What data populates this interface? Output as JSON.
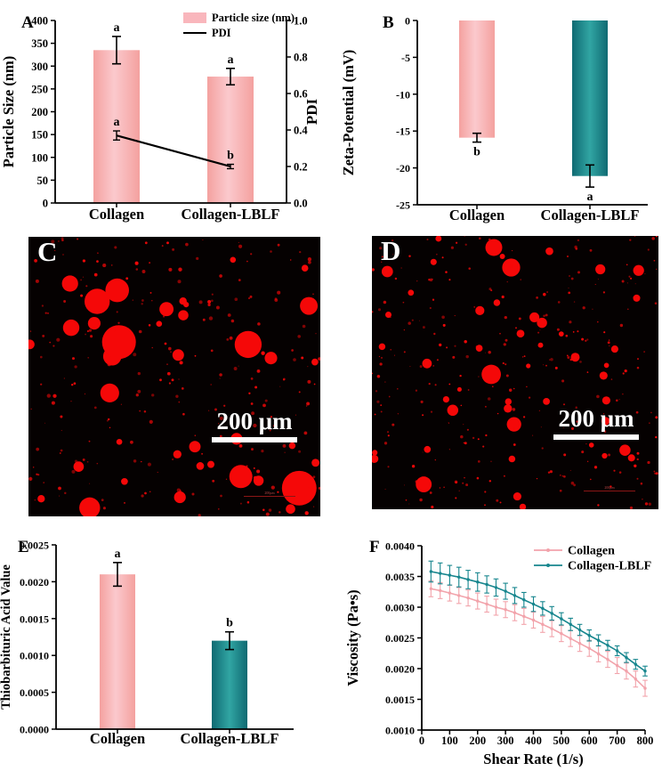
{
  "colors": {
    "axis": "#000000",
    "pink_edge": "#f4a19f",
    "pink_mid": "#fbc9cd",
    "pink_flat": "#f9b6bc",
    "teal_edge": "#0f6a72",
    "teal_mid": "#31a5a3",
    "pink_line": "#f2a3ab",
    "teal_line": "#17868e",
    "micro_red": "#f50808",
    "micro_bg": "#050101",
    "scalebar_white": "#ffffff"
  },
  "microscopy": {
    "c": {
      "label": "C",
      "scale_text": "200 μm",
      "embedded_scale_text": "200μm",
      "seed": 20,
      "tiers": [
        {
          "count": 12,
          "rmin": 8,
          "rmax": 20
        },
        {
          "count": 26,
          "rmin": 3,
          "rmax": 8
        },
        {
          "count": 260,
          "rmin": 0.5,
          "rmax": 2.2
        }
      ]
    },
    "d": {
      "label": "D",
      "scale_text": "200 μm",
      "embedded_scale_text": "200μm",
      "seed": 77,
      "tiers": [
        {
          "count": 7,
          "rmin": 6,
          "rmax": 11
        },
        {
          "count": 42,
          "rmin": 2.5,
          "rmax": 6.5
        },
        {
          "count": 300,
          "rmin": 0.4,
          "rmax": 1.8
        }
      ]
    }
  },
  "chart_data": [
    {
      "id": "A",
      "panel_letter": "A",
      "type": "bar",
      "subtype": "dual-axis-bar-line",
      "categories": [
        "Collagen",
        "Collagen-LBLF"
      ],
      "bar_series": {
        "name": "Particle size (nm)",
        "values": [
          335,
          277
        ],
        "errors": [
          30,
          18
        ],
        "letters": [
          "a",
          "a"
        ]
      },
      "line_series": {
        "name": "PDI",
        "values": [
          0.37,
          0.2
        ],
        "errors": [
          0.025,
          0.012
        ],
        "letters": [
          "a",
          "b"
        ]
      },
      "ylabel_left": "Particle Size (nm)",
      "ylabel_right": "PDI",
      "ylim_left": [
        0,
        400
      ],
      "ystep_left": 50,
      "ylim_right": [
        0,
        1
      ],
      "ystep_right": 0.2,
      "legend": [
        "Particle size (nm)",
        "PDI"
      ],
      "legend_position": "top-right-inside",
      "grid": false
    },
    {
      "id": "B",
      "panel_letter": "B",
      "type": "bar",
      "categories": [
        "Collagen",
        "Collagen-LBLF"
      ],
      "values": [
        -15.9,
        -21.1
      ],
      "errors": [
        0.6,
        1.5
      ],
      "letters": [
        "b",
        "a"
      ],
      "bar_colors": [
        "pink",
        "teal"
      ],
      "ylabel": "Zeta-Potential (mV)",
      "ylim": [
        -25,
        0
      ],
      "ystep": 5,
      "decimals": 0,
      "grid": false
    },
    {
      "id": "E",
      "panel_letter": "E",
      "type": "bar",
      "categories": [
        "Collagen",
        "Collagen-LBLF"
      ],
      "values": [
        0.0021,
        0.0012
      ],
      "errors": [
        0.00016,
        0.00012
      ],
      "letters": [
        "a",
        "b"
      ],
      "bar_colors": [
        "pink",
        "teal"
      ],
      "ylabel": "Thiobarbituric Acid Value",
      "ylim": [
        0,
        0.0025
      ],
      "ystep": 0.0005,
      "decimals": 4,
      "grid": false
    },
    {
      "id": "F",
      "panel_letter": "F",
      "type": "line",
      "xlabel": "Shear Rate (1/s)",
      "ylabel": "Viscosity (Pa•s)",
      "xlim": [
        0,
        800
      ],
      "xticks": [
        0,
        100,
        200,
        300,
        400,
        500,
        600,
        700,
        800
      ],
      "ylim": [
        0.001,
        0.004
      ],
      "ystep": 0.0005,
      "decimals": 4,
      "legend_position": "top-right-inside",
      "grid": false,
      "x": [
        33,
        66,
        100,
        133,
        166,
        200,
        233,
        266,
        300,
        333,
        366,
        400,
        433,
        466,
        500,
        533,
        566,
        600,
        633,
        666,
        700,
        733,
        766,
        800
      ],
      "series": [
        {
          "name": "Collagen",
          "color_key": "pink_line",
          "y": [
            0.0033,
            0.00327,
            0.00323,
            0.00319,
            0.00315,
            0.0031,
            0.00305,
            0.003,
            0.00296,
            0.00291,
            0.00285,
            0.00279,
            0.00272,
            0.00265,
            0.00257,
            0.00249,
            0.00241,
            0.00233,
            0.00224,
            0.00215,
            0.00205,
            0.00196,
            0.00183,
            0.00168
          ],
          "err": 0.00013
        },
        {
          "name": "Collagen-LBLF",
          "color_key": "teal_line",
          "y": [
            0.00358,
            0.00355,
            0.00352,
            0.00349,
            0.00345,
            0.00341,
            0.00337,
            0.00332,
            0.00326,
            0.00319,
            0.00312,
            0.00305,
            0.00298,
            0.0029,
            0.00281,
            0.00272,
            0.00263,
            0.00254,
            0.00246,
            0.00238,
            0.00229,
            0.00218,
            0.00207,
            0.00196
          ],
          "err": [
            0.00017,
            0.00017,
            0.00016,
            0.00016,
            0.00015,
            0.00015,
            0.00014,
            0.00014,
            0.00013,
            0.00013,
            0.00012,
            0.00012,
            0.00011,
            0.00011,
            0.0001,
            0.0001,
            9e-05,
            9e-05,
            9e-05,
            8e-05,
            8e-05,
            8e-05,
            8e-05,
            8e-05
          ]
        }
      ]
    }
  ]
}
